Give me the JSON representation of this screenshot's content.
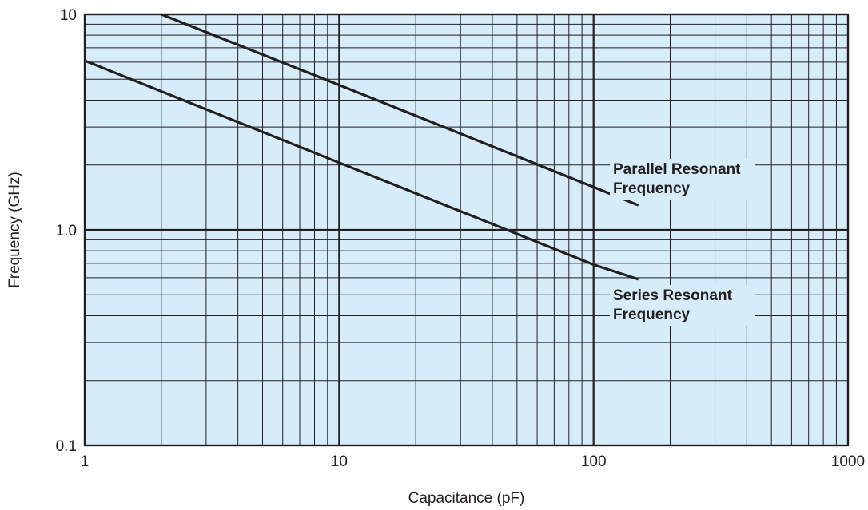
{
  "chart_data": {
    "type": "line",
    "title": "",
    "xlabel": "Capacitance (pF)",
    "ylabel": "Frequency (GHz)",
    "x_scale": "log",
    "y_scale": "log",
    "xlim": [
      1,
      1000
    ],
    "ylim": [
      0.1,
      10
    ],
    "grid": true,
    "x_ticks": [
      {
        "value": 1,
        "label": "1"
      },
      {
        "value": 10,
        "label": "10"
      },
      {
        "value": 100,
        "label": "100"
      },
      {
        "value": 1000,
        "label": "1000"
      }
    ],
    "y_ticks": [
      {
        "value": 0.1,
        "label": "0.1"
      },
      {
        "value": 1,
        "label": "1.0"
      },
      {
        "value": 10,
        "label": "10"
      }
    ],
    "series": [
      {
        "name": "Parallel Resonant Frequency",
        "label_lines": [
          "Parallel Resonant",
          "Frequency"
        ],
        "x": [
          2,
          10,
          100,
          150
        ],
        "y": [
          10,
          4.7,
          1.58,
          1.3
        ]
      },
      {
        "name": "Series Resonant Frequency",
        "label_lines": [
          "Series Resonant",
          "Frequency"
        ],
        "x": [
          1,
          10,
          100,
          150
        ],
        "y": [
          6.1,
          2.05,
          0.69,
          0.59
        ]
      }
    ],
    "colors": {
      "plot_background": "#d6ecf8",
      "grid_minor": "#231f20",
      "grid_major": "#231f20",
      "series_line": "#231f20",
      "text": "#231f20"
    }
  }
}
